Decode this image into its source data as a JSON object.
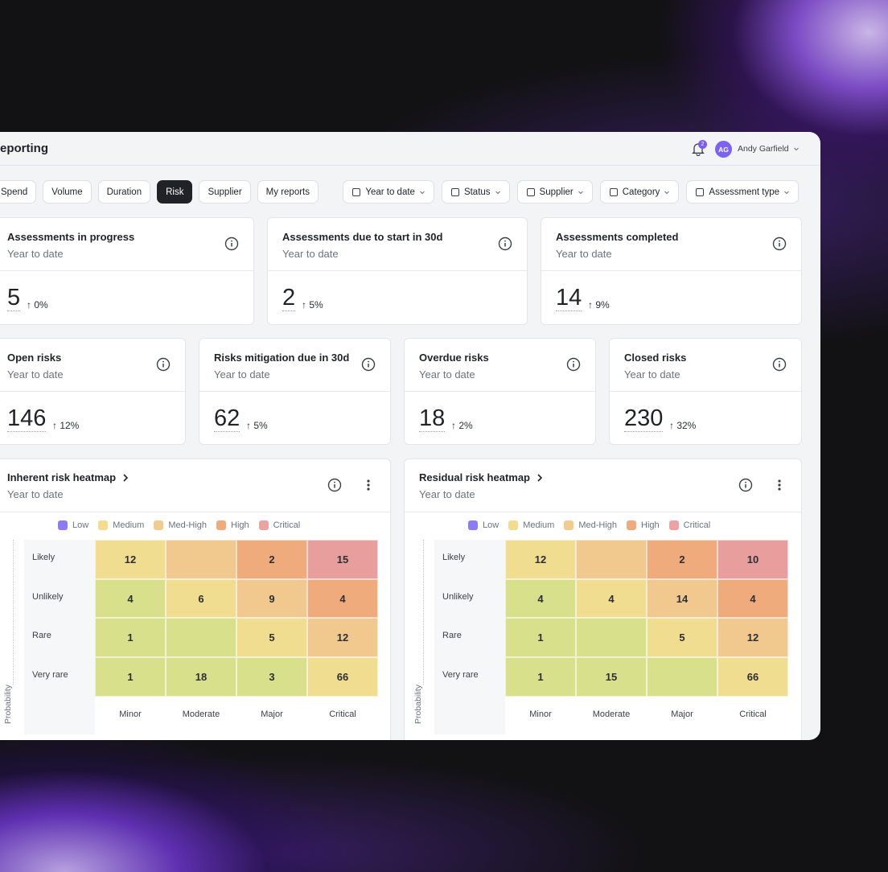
{
  "header": {
    "title": "eporting",
    "notifications": "2",
    "user_initials": "AG",
    "user_name": "Andy Garfield"
  },
  "tabs": [
    "Spend",
    "Volume",
    "Duration",
    "Risk",
    "Supplier",
    "My reports"
  ],
  "active_tab": 3,
  "filters": [
    "Year to date",
    "Status",
    "Supplier",
    "Category",
    "Assessment type"
  ],
  "metric_rows": [
    [
      {
        "title": "Assessments in progress",
        "subtitle": "Year to date",
        "value": 5,
        "delta": "↑ 0%"
      },
      {
        "title": "Assessments due to start in 30d",
        "subtitle": "Year to date",
        "value": 2,
        "delta": "↑ 5%"
      },
      {
        "title": "Assessments completed",
        "subtitle": "Year to date",
        "value": 14,
        "delta": "↑ 9%"
      }
    ],
    [
      {
        "title": "Open risks",
        "subtitle": "Year to date",
        "value": 146,
        "delta": "↑ 12%"
      },
      {
        "title": "Risks mitigation due in 30d",
        "subtitle": "Year to date",
        "value": 62,
        "delta": "↑ 5%"
      },
      {
        "title": "Overdue risks",
        "subtitle": "Year to date",
        "value": 18,
        "delta": "↑ 2%"
      },
      {
        "title": "Closed risks",
        "subtitle": "Year to date",
        "value": 230,
        "delta": "↑ 32%"
      }
    ]
  ],
  "heatmaps": [
    {
      "title": "Inherent risk heatmap",
      "subtitle": "Year to date",
      "y_label": "Probability",
      "legend": [
        {
          "name": "Low",
          "color": "#8b7cf6"
        },
        {
          "name": "Medium",
          "color": "#f3dc8f"
        },
        {
          "name": "Med-High",
          "color": "#f2cc8f"
        },
        {
          "name": "High",
          "color": "#f0ab7d"
        },
        {
          "name": "Critical",
          "color": "#eba3a3"
        }
      ],
      "rows": [
        "Likely",
        "Unlikely",
        "Rare",
        "Very rare"
      ],
      "columns": [
        "Minor",
        "Moderate",
        "Major",
        "Critical"
      ],
      "cells": [
        [
          12,
          null,
          2,
          15
        ],
        [
          4,
          6,
          9,
          4
        ],
        [
          1,
          null,
          5,
          12
        ],
        [
          1,
          18,
          3,
          66
        ]
      ],
      "cell_colors": [
        [
          "#f1dd8f",
          "#f1c98f",
          "#efab7b",
          "#e99e9e"
        ],
        [
          "#d8e08c",
          "#f1dd8f",
          "#f1c98f",
          "#efab7b"
        ],
        [
          "#d8e08c",
          "#d8e08c",
          "#f1dd8f",
          "#f1c98f"
        ],
        [
          "#d8e08c",
          "#d8e08c",
          "#d8e08c",
          "#f1dd8f"
        ]
      ]
    },
    {
      "title": "Residual risk heatmap",
      "subtitle": "Year to date",
      "y_label": "Probability",
      "legend": [
        {
          "name": "Low",
          "color": "#8b7cf6"
        },
        {
          "name": "Medium",
          "color": "#f3dc8f"
        },
        {
          "name": "Med-High",
          "color": "#f2cc8f"
        },
        {
          "name": "High",
          "color": "#f0ab7d"
        },
        {
          "name": "Critical",
          "color": "#eba3a3"
        }
      ],
      "rows": [
        "Likely",
        "Unlikely",
        "Rare",
        "Very rare"
      ],
      "columns": [
        "Minor",
        "Moderate",
        "Major",
        "Critical"
      ],
      "cells": [
        [
          12,
          null,
          2,
          10
        ],
        [
          4,
          4,
          14,
          4
        ],
        [
          1,
          null,
          5,
          12
        ],
        [
          1,
          15,
          null,
          66
        ]
      ],
      "cell_colors": [
        [
          "#f1dd8f",
          "#f1c98f",
          "#efab7b",
          "#e99e9e"
        ],
        [
          "#d8e08c",
          "#f1dd8f",
          "#f1c98f",
          "#efab7b"
        ],
        [
          "#d8e08c",
          "#d8e08c",
          "#f1dd8f",
          "#f1c98f"
        ],
        [
          "#d8e08c",
          "#d8e08c",
          "#d8e08c",
          "#f1dd8f"
        ]
      ]
    }
  ]
}
